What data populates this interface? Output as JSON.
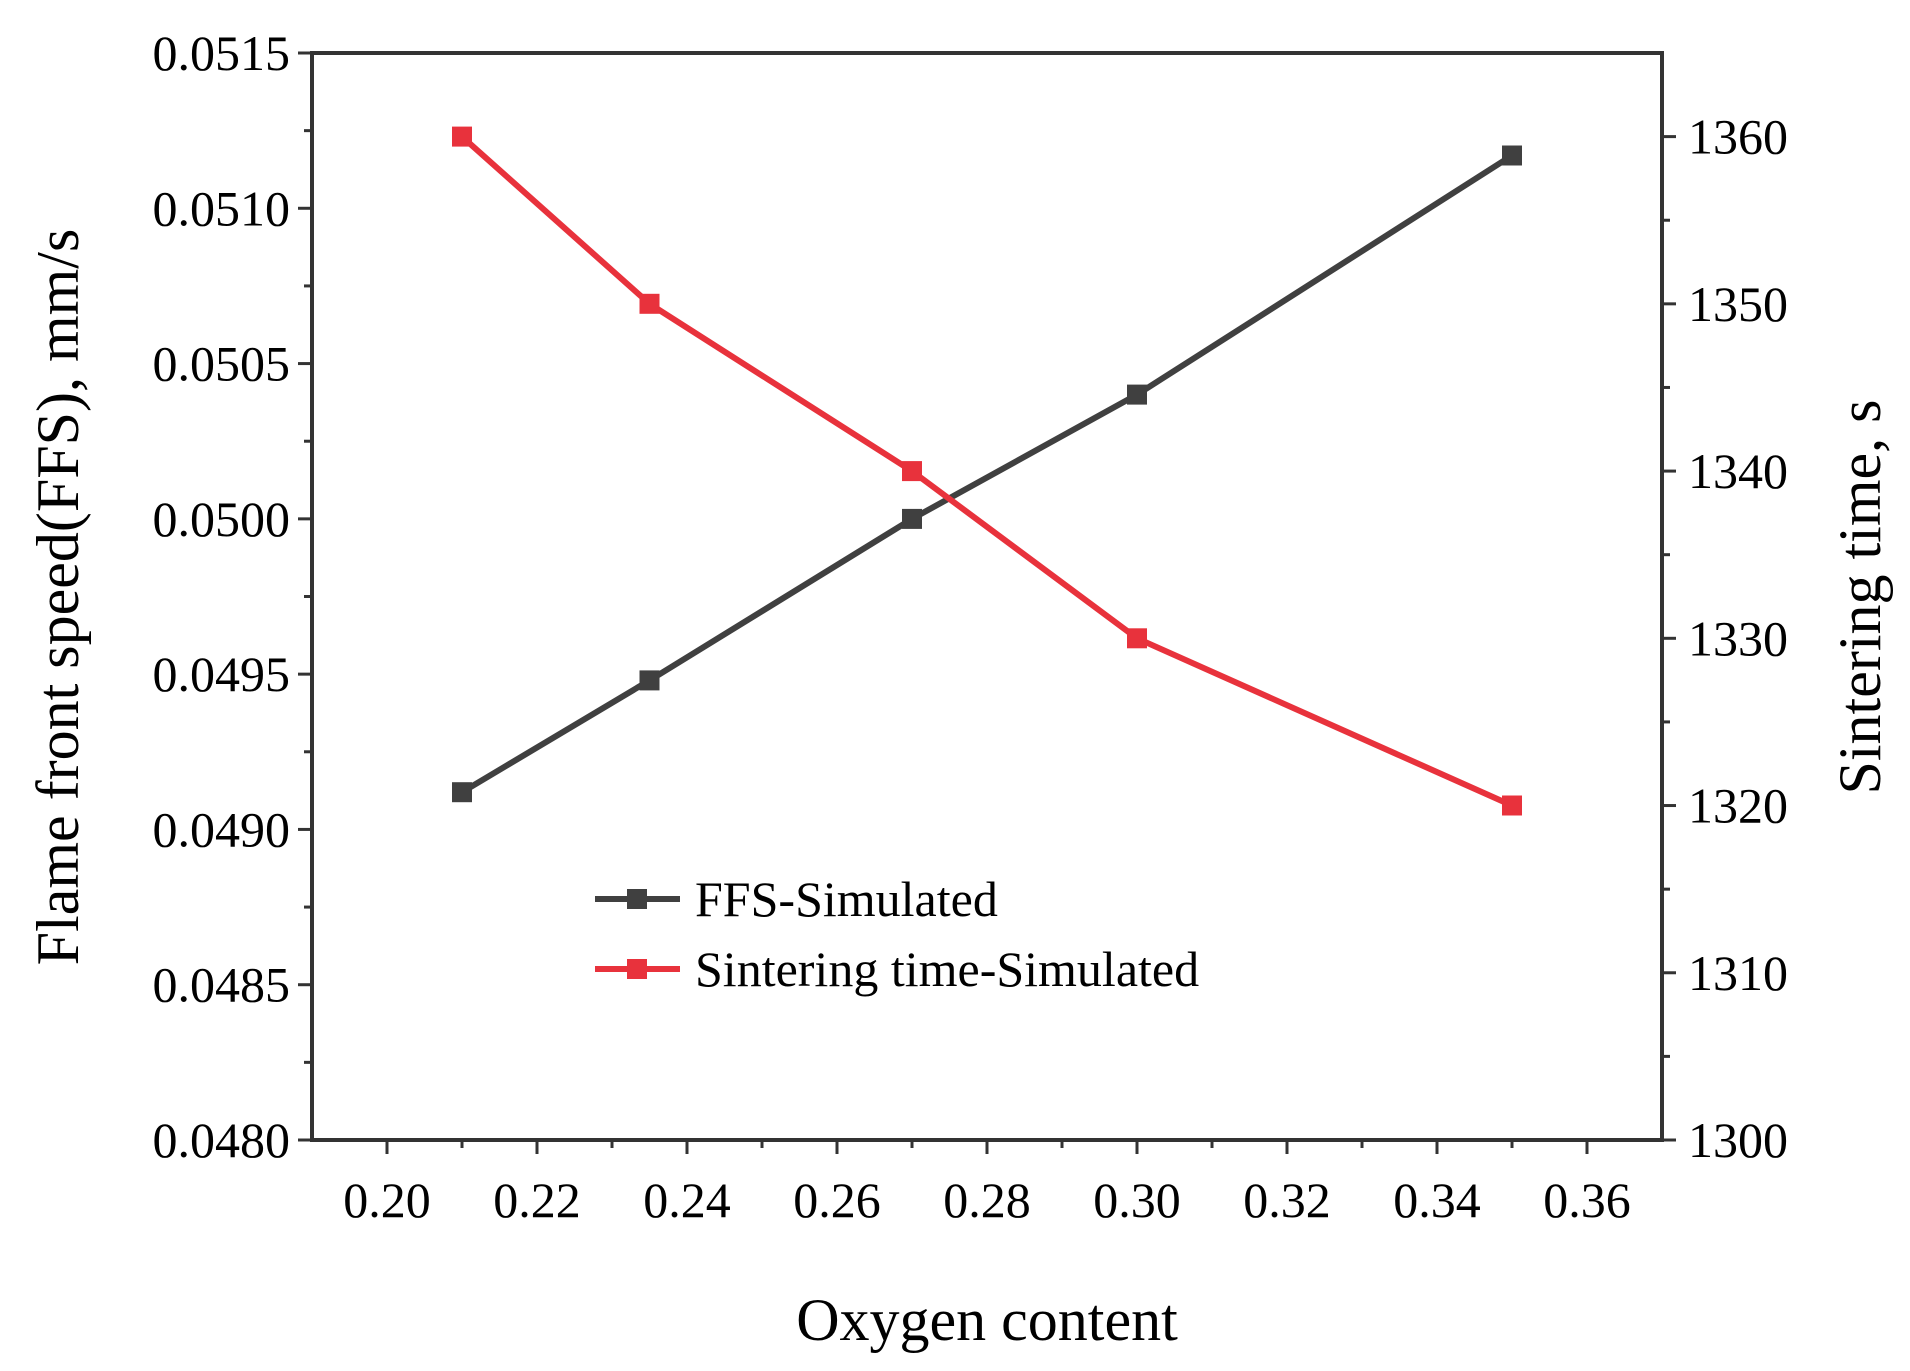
{
  "chart_data": {
    "type": "line",
    "xlabel": "Oxygen content",
    "ylabel": "Flame front speed(FFS), mm/s",
    "y2label": "Sintering time, s",
    "xlim": [
      0.19,
      0.37
    ],
    "ylim": [
      0.048,
      0.0515
    ],
    "y2lim": [
      1300,
      1365
    ],
    "x_ticks": [
      "0.20",
      "0.22",
      "0.24",
      "0.26",
      "0.28",
      "0.30",
      "0.32",
      "0.34",
      "0.36"
    ],
    "y_ticks": [
      "0.0480",
      "0.0485",
      "0.0490",
      "0.0495",
      "0.0500",
      "0.0505",
      "0.0510",
      "0.0515"
    ],
    "y2_ticks": [
      "1300",
      "1310",
      "1320",
      "1330",
      "1340",
      "1350",
      "1360"
    ],
    "legend_position": "center-left",
    "series": [
      {
        "name": "FFS-Simulated",
        "axis": "left",
        "color": "#404040",
        "marker": "square",
        "x": [
          0.21,
          0.235,
          0.27,
          0.3,
          0.35
        ],
        "y": [
          0.04912,
          0.04948,
          0.05,
          0.0504,
          0.05117
        ]
      },
      {
        "name": "Sintering time-Simulated",
        "axis": "right",
        "color": "#e8323c",
        "marker": "square",
        "x": [
          0.21,
          0.235,
          0.27,
          0.3,
          0.35
        ],
        "y": [
          1360,
          1350,
          1340,
          1330,
          1320
        ]
      }
    ]
  }
}
